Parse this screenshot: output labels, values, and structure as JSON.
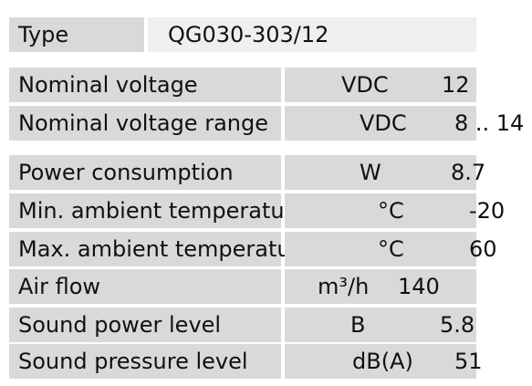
{
  "type_row": {
    "label": "Type",
    "value": "QG030-303/12"
  },
  "rows": [
    {
      "label": "Nominal voltage",
      "unit": "VDC",
      "value": "12"
    },
    {
      "label": "Nominal voltage range",
      "unit": "VDC",
      "value": "8 .. 14"
    },
    {
      "label": "Power consumption",
      "unit": "W",
      "value": "8.7"
    },
    {
      "label": "Min. ambient temperature",
      "unit": "°C",
      "value": "-20"
    },
    {
      "label": "Max. ambient temperature",
      "unit": "°C",
      "value": "60"
    },
    {
      "label": "Air flow",
      "unit": "m³/h",
      "value": "140"
    },
    {
      "label": "Sound power level",
      "unit": "B",
      "value": "5.8"
    },
    {
      "label": "Sound pressure level",
      "unit": "dB(A)",
      "value": "51"
    }
  ]
}
